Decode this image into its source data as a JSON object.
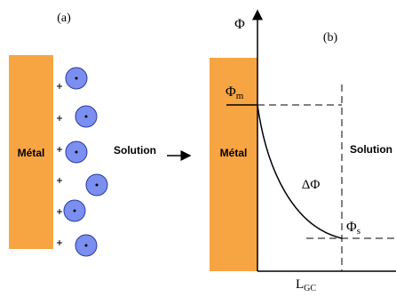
{
  "panel_a": {
    "label": "(a)",
    "metal": "Métal",
    "solution": "Solution"
  },
  "panel_b": {
    "label": "(b)",
    "axis_y": "Φ",
    "metal": "Métal",
    "solution": "Solution",
    "phi_m": {
      "main": "Φ",
      "sub": "m"
    },
    "delta_phi": "ΔΦ",
    "phi_s": {
      "main": "Φ",
      "sub": "s"
    },
    "axis_x": {
      "main": "L",
      "sub": "GC"
    }
  }
}
